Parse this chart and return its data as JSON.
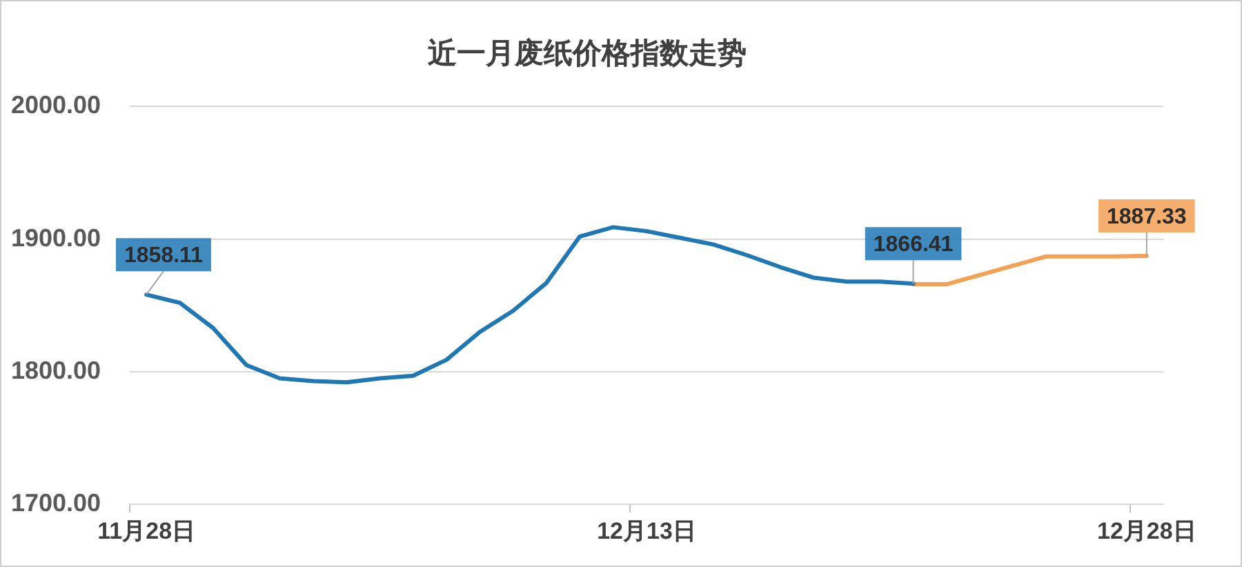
{
  "chart_data": {
    "type": "line",
    "title": "近一月废纸价格指数走势",
    "categories": [
      "11月28日",
      null,
      null,
      null,
      null,
      null,
      null,
      null,
      null,
      null,
      null,
      null,
      null,
      null,
      null,
      "12月13日",
      null,
      null,
      null,
      null,
      null,
      null,
      null,
      null,
      null,
      null,
      null,
      null,
      null,
      null,
      "12月28日"
    ],
    "series": [
      {
        "color": "#1f77b4",
        "values": [
          1858.11,
          1852,
          1833,
          1805,
          1795,
          1793,
          1792,
          1795,
          1797,
          1809,
          1830,
          1846,
          1867,
          1902,
          1909,
          1906,
          1901,
          1896,
          1888,
          1879,
          1871,
          1868,
          1868,
          1866.41,
          null,
          null,
          null,
          null,
          null,
          null,
          null
        ],
        "value_labels": [
          "1858.11",
          null,
          null,
          null,
          null,
          null,
          null,
          null,
          null,
          null,
          null,
          null,
          null,
          null,
          null,
          null,
          null,
          null,
          null,
          null,
          null,
          null,
          null,
          "1866.41",
          null,
          null,
          null,
          null,
          null,
          null,
          null
        ]
      },
      {
        "color": "#f4a055",
        "values": [
          null,
          null,
          null,
          null,
          null,
          null,
          null,
          null,
          null,
          null,
          null,
          null,
          null,
          null,
          null,
          null,
          null,
          null,
          null,
          null,
          null,
          null,
          null,
          1866,
          1866,
          1873,
          1880,
          1887,
          1887,
          1887,
          1887.33
        ],
        "value_labels": [
          null,
          null,
          null,
          null,
          null,
          null,
          null,
          null,
          null,
          null,
          null,
          null,
          null,
          null,
          null,
          null,
          null,
          null,
          null,
          null,
          null,
          null,
          null,
          null,
          null,
          null,
          null,
          null,
          null,
          null,
          "1887.33"
        ]
      }
    ],
    "ylim": [
      1700,
      2000
    ],
    "yticks": [
      {
        "value": 1700,
        "label": "1700.00"
      },
      {
        "value": 1800,
        "label": "1800.00"
      },
      {
        "value": 1900,
        "label": "1900.00"
      },
      {
        "value": 2000,
        "label": "2000.00"
      }
    ],
    "grid": "y",
    "marker": "none"
  }
}
